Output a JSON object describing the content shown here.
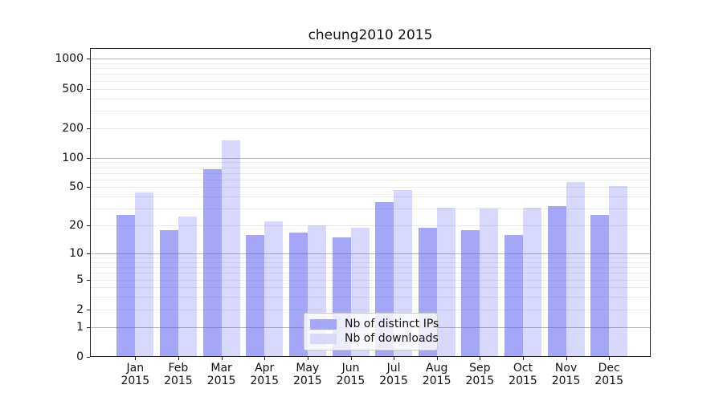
{
  "chart_data": {
    "type": "bar",
    "title": "cheung2010 2015",
    "year_label": "2015",
    "categories": [
      "Jan",
      "Feb",
      "Mar",
      "Apr",
      "May",
      "Jun",
      "Jul",
      "Aug",
      "Sep",
      "Oct",
      "Nov",
      "Dec"
    ],
    "series": [
      {
        "name": "Nb of distinct IPs",
        "values": [
          26,
          18,
          76,
          16,
          17,
          15,
          35,
          19,
          18,
          16,
          32,
          26
        ],
        "color": "#a7a7f7",
        "color_rgba": "rgba(92,92,242,0.55)"
      },
      {
        "name": "Nb of downloads",
        "values": [
          44,
          25,
          150,
          22,
          20,
          19,
          47,
          31,
          30,
          31,
          57,
          51
        ],
        "color": "#dadaf8",
        "color_rgba": "rgba(92,92,242,0.24)"
      }
    ],
    "y_axis": {
      "scale": "log10(1+x)",
      "tick_labels": [
        "1000",
        "500",
        "200",
        "100",
        "50",
        "20",
        "10",
        "5",
        "2",
        "1",
        "0"
      ],
      "tick_values": [
        1000,
        500,
        200,
        100,
        50,
        20,
        10,
        5,
        2,
        1,
        0
      ],
      "major_grid_values": [
        1,
        10,
        100,
        1000
      ],
      "minor_grid_values": [
        2,
        3,
        4,
        5,
        6,
        7,
        8,
        9,
        20,
        30,
        40,
        50,
        60,
        70,
        80,
        90,
        200,
        300,
        400,
        500,
        600,
        700,
        800,
        900
      ],
      "range_top": 1280
    },
    "x_axis": {
      "label_format": "month newline year"
    },
    "legend_position": "lower center",
    "grid": true
  },
  "colors": {
    "grid_major": "#b4b4b4",
    "grid_minor": "#ebebeb",
    "spine": "#222222",
    "text": "#111111",
    "legend_border": "#cccccc",
    "background": "#ffffff"
  }
}
